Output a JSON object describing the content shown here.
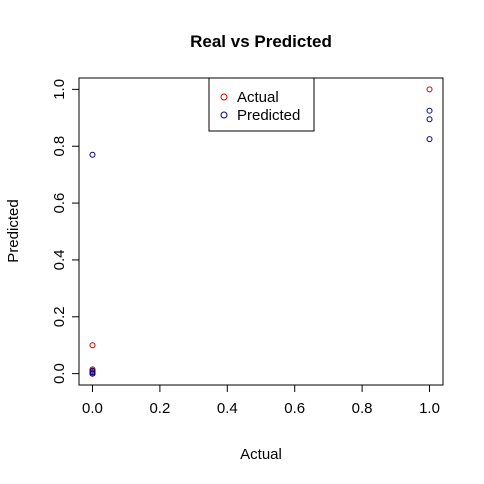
{
  "chart_data": {
    "type": "scatter",
    "title": "Real vs Predicted",
    "xlabel": "Actual",
    "ylabel": "Predicted",
    "xlim": [
      -0.04,
      1.04
    ],
    "ylim": [
      -0.04,
      1.04
    ],
    "x_ticks": [
      0.0,
      0.2,
      0.4,
      0.6,
      0.8,
      1.0
    ],
    "x_tick_labels": [
      "0.0",
      "0.2",
      "0.4",
      "0.6",
      "0.8",
      "1.0"
    ],
    "y_ticks": [
      0.0,
      0.2,
      0.4,
      0.6,
      0.8,
      1.0
    ],
    "y_tick_labels": [
      "0.0",
      "0.2",
      "0.4",
      "0.6",
      "0.8",
      "1.0"
    ],
    "grid": false,
    "legend_position": "top-center",
    "series": [
      {
        "name": "Actual",
        "color": "#cc0000",
        "marker": "open-circle",
        "points": [
          {
            "x": 0,
            "y": 0.1
          },
          {
            "x": 0,
            "y": 0.015
          },
          {
            "x": 0,
            "y": 0.01
          },
          {
            "x": 0,
            "y": 0.005
          },
          {
            "x": 0,
            "y": 0.0
          },
          {
            "x": 0,
            "y": 0.0
          },
          {
            "x": 1,
            "y": 1.0
          }
        ]
      },
      {
        "name": "Predicted",
        "color": "#00008b",
        "marker": "open-circle",
        "points": [
          {
            "x": 0,
            "y": 0.77
          },
          {
            "x": 0,
            "y": 0.01
          },
          {
            "x": 0,
            "y": 0.005
          },
          {
            "x": 0,
            "y": 0.0
          },
          {
            "x": 1,
            "y": 0.925
          },
          {
            "x": 1,
            "y": 0.895
          },
          {
            "x": 1,
            "y": 0.825
          }
        ]
      }
    ]
  }
}
